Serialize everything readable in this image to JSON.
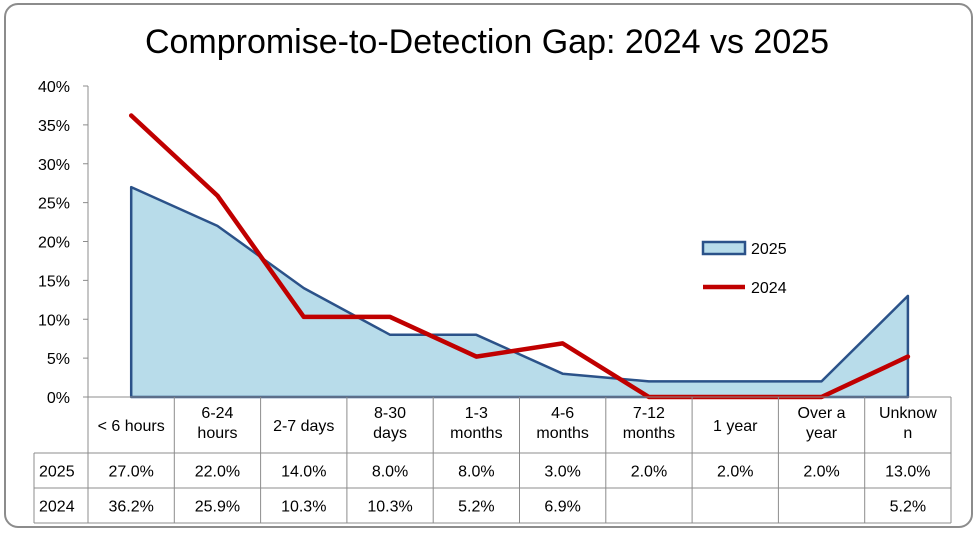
{
  "chart_data": {
    "type": "area",
    "title": "Compromise-to-Detection Gap: 2024 vs 2025",
    "categories": [
      [
        "< 6 hours"
      ],
      [
        "6-24",
        "hours"
      ],
      [
        "2-7 days"
      ],
      [
        "8-30",
        "days"
      ],
      [
        "1-3",
        "months"
      ],
      [
        "4-6",
        "months"
      ],
      [
        "7-12",
        "months"
      ],
      [
        "1 year"
      ],
      [
        "Over a",
        "year"
      ],
      [
        "Unknow",
        "n"
      ]
    ],
    "y_ticks": [
      "0%",
      "5%",
      "10%",
      "15%",
      "20%",
      "25%",
      "30%",
      "35%",
      "40%"
    ],
    "ylim": [
      0,
      40
    ],
    "legend_position": "right",
    "data_table": true,
    "series": [
      {
        "name": "2025",
        "type": "area",
        "color": "#b8dcea",
        "line_color": "#2b5289",
        "values": [
          27.0,
          22.0,
          14.0,
          8.0,
          8.0,
          3.0,
          2.0,
          2.0,
          2.0,
          13.0
        ],
        "labels": [
          "27.0%",
          "22.0%",
          "14.0%",
          "8.0%",
          "8.0%",
          "3.0%",
          "2.0%",
          "2.0%",
          "2.0%",
          "13.0%"
        ]
      },
      {
        "name": "2024",
        "type": "line",
        "color": "#c00000",
        "values": [
          36.2,
          25.9,
          10.3,
          10.3,
          5.2,
          6.9,
          0,
          0,
          0,
          5.2
        ],
        "labels": [
          "36.2%",
          "25.9%",
          "10.3%",
          "10.3%",
          "5.2%",
          "6.9%",
          "",
          "",
          "",
          "5.2%"
        ]
      }
    ]
  }
}
